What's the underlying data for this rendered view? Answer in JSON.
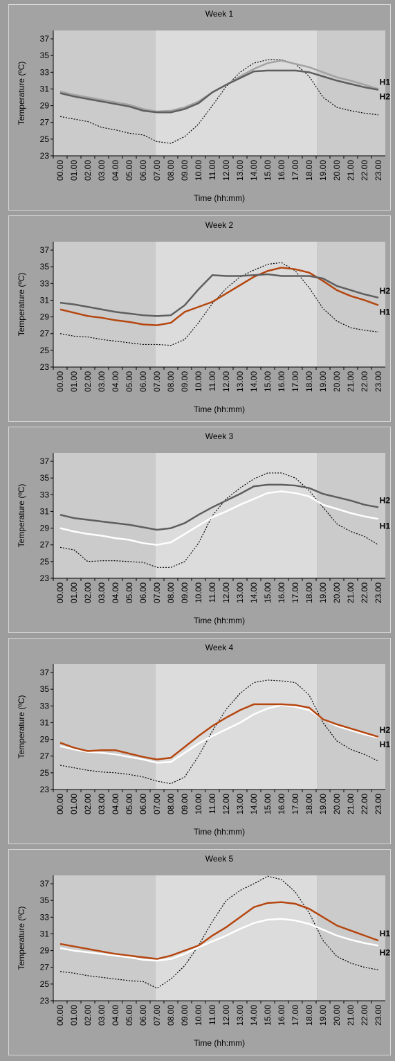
{
  "chart_data": [
    {
      "type": "line",
      "title": "Week 1",
      "ylabel": "Temperature (ºC)",
      "xlabel": "Time (hh:mm)",
      "categories": [
        "00.00",
        "01.00",
        "02.00",
        "03.00",
        "04.00",
        "05.00",
        "06.00",
        "07.00",
        "08.00",
        "09.00",
        "10.00",
        "11.00",
        "12.00",
        "13.00",
        "14.00",
        "15.00",
        "16.00",
        "17.00",
        "18.00",
        "19.00",
        "20.00",
        "21.00",
        "22.00",
        "23.00"
      ],
      "ylim": [
        23,
        38
      ],
      "yticks": [
        23,
        25,
        27,
        29,
        31,
        33,
        35,
        37
      ],
      "series": [
        {
          "color": "#000000",
          "dashed": true,
          "values": [
            27.7,
            27.4,
            27.1,
            26.4,
            26.1,
            25.7,
            25.5,
            24.7,
            24.5,
            25.3,
            26.8,
            29.0,
            31.3,
            33.0,
            34.1,
            34.5,
            34.5,
            34.0,
            32.5,
            30.0,
            28.8,
            28.4,
            28.1,
            27.9
          ]
        },
        {
          "name": "H1",
          "color": "#a2a2a2",
          "values": [
            30.7,
            30.3,
            30.0,
            29.7,
            29.4,
            29.1,
            28.6,
            28.3,
            28.4,
            28.8,
            29.5,
            30.6,
            31.5,
            32.5,
            33.4,
            34.1,
            34.4,
            34.0,
            33.6,
            33.0,
            32.4,
            32.0,
            31.5,
            31.0
          ]
        },
        {
          "name": "H2",
          "color": "#5e5e5e",
          "values": [
            30.5,
            30.1,
            29.8,
            29.5,
            29.2,
            28.9,
            28.4,
            28.2,
            28.2,
            28.6,
            29.3,
            30.6,
            31.5,
            32.3,
            33.1,
            33.2,
            33.2,
            33.2,
            33.0,
            32.5,
            32.0,
            31.6,
            31.2,
            30.9
          ]
        }
      ]
    },
    {
      "type": "line",
      "title": "Week 2",
      "ylabel": "Temperature (ºC)",
      "xlabel": "Time (hh:mm)",
      "categories": [
        "00.00",
        "01.00",
        "02.00",
        "03.00",
        "04.00",
        "05.00",
        "06.00",
        "07.00",
        "08.00",
        "09.00",
        "10.00",
        "11.00",
        "12.00",
        "13.00",
        "14.00",
        "15.00",
        "16.00",
        "17.00",
        "18.00",
        "19.00",
        "20.00",
        "21.00",
        "22.00",
        "23.00"
      ],
      "ylim": [
        23,
        38
      ],
      "yticks": [
        23,
        25,
        27,
        29,
        31,
        33,
        35,
        37
      ],
      "series": [
        {
          "color": "#000000",
          "dashed": true,
          "values": [
            27.0,
            26.7,
            26.6,
            26.3,
            26.1,
            25.9,
            25.7,
            25.7,
            25.6,
            26.3,
            28.3,
            30.6,
            32.4,
            33.8,
            34.6,
            35.3,
            35.5,
            34.5,
            32.5,
            30.0,
            28.5,
            27.7,
            27.4,
            27.2
          ]
        },
        {
          "name": "H1",
          "color": "#b5460f",
          "values": [
            29.9,
            29.5,
            29.1,
            28.9,
            28.6,
            28.4,
            28.1,
            28.0,
            28.3,
            29.6,
            30.2,
            30.8,
            31.8,
            32.8,
            33.8,
            34.5,
            34.9,
            34.7,
            34.3,
            33.3,
            32.2,
            31.5,
            31.0,
            30.4
          ]
        },
        {
          "name": "H2",
          "color": "#5e5e5e",
          "values": [
            30.7,
            30.5,
            30.2,
            29.9,
            29.6,
            29.4,
            29.2,
            29.1,
            29.2,
            30.4,
            32.3,
            34.0,
            33.9,
            33.9,
            34.0,
            34.1,
            33.9,
            33.9,
            33.9,
            33.6,
            32.7,
            32.2,
            31.7,
            31.3
          ]
        }
      ]
    },
    {
      "type": "line",
      "title": "Week 3",
      "ylabel": "Temperature (ºC)",
      "xlabel": "Time (hh:mm)",
      "categories": [
        "00.00",
        "01.00",
        "02.00",
        "03.00",
        "04.00",
        "05.00",
        "06.00",
        "07.00",
        "08.00",
        "09.00",
        "10.00",
        "11.00",
        "12.00",
        "13.00",
        "14.00",
        "15.00",
        "16.00",
        "17.00",
        "18.00",
        "19.00",
        "20.00",
        "21.00",
        "22.00",
        "23.00"
      ],
      "ylim": [
        23,
        38
      ],
      "yticks": [
        23,
        25,
        27,
        29,
        31,
        33,
        35,
        37
      ],
      "series": [
        {
          "color": "#000000",
          "dashed": true,
          "values": [
            26.7,
            26.4,
            25.0,
            25.1,
            25.1,
            25.0,
            24.9,
            24.3,
            24.3,
            25.0,
            27.2,
            30.5,
            32.5,
            33.8,
            34.9,
            35.6,
            35.6,
            35.0,
            33.5,
            31.5,
            29.5,
            28.6,
            28.0,
            27.0
          ]
        },
        {
          "name": "H1",
          "color": "#ffffff",
          "values": [
            29.0,
            28.6,
            28.3,
            28.1,
            27.8,
            27.6,
            27.2,
            27.0,
            27.3,
            28.3,
            29.3,
            30.3,
            31.0,
            31.8,
            32.5,
            33.2,
            33.4,
            33.2,
            32.8,
            31.8,
            31.3,
            30.8,
            30.4,
            30.1
          ]
        },
        {
          "name": "H2",
          "color": "#5e5e5e",
          "values": [
            30.6,
            30.2,
            30.0,
            29.8,
            29.6,
            29.4,
            29.1,
            28.8,
            29.0,
            29.6,
            30.6,
            31.5,
            32.3,
            33.1,
            34.0,
            34.2,
            34.2,
            34.1,
            33.8,
            33.1,
            32.7,
            32.3,
            31.8,
            31.5
          ]
        }
      ]
    },
    {
      "type": "line",
      "title": "Week 4",
      "ylabel": "Temperature (ºC)",
      "xlabel": "Time (hh:mm)",
      "categories": [
        "00.00",
        "01.00",
        "02.00",
        "03.00",
        "04.00",
        "05.00",
        "06.00",
        "07.00",
        "08.00",
        "09.00",
        "10.00",
        "11.00",
        "12.00",
        "13.00",
        "14.00",
        "15.00",
        "16.00",
        "17.00",
        "18.00",
        "19.00",
        "20.00",
        "21.00",
        "22.00",
        "23.00"
      ],
      "ylim": [
        23,
        38
      ],
      "yticks": [
        23,
        25,
        27,
        29,
        31,
        33,
        35,
        37
      ],
      "series": [
        {
          "color": "#000000",
          "dashed": true,
          "values": [
            25.9,
            25.6,
            25.3,
            25.1,
            25.0,
            24.8,
            24.5,
            24.0,
            23.7,
            24.5,
            27.0,
            30.0,
            32.6,
            34.5,
            35.8,
            36.1,
            36.0,
            35.8,
            34.3,
            31.0,
            28.8,
            27.8,
            27.2,
            26.4
          ]
        },
        {
          "name": "H1",
          "color": "#ffffff",
          "values": [
            28.2,
            27.8,
            27.5,
            27.4,
            27.2,
            26.9,
            26.6,
            26.2,
            26.3,
            27.4,
            28.5,
            29.4,
            30.2,
            31.0,
            32.0,
            32.7,
            33.1,
            32.9,
            32.5,
            31.4,
            30.6,
            30.1,
            29.6,
            29.2
          ]
        },
        {
          "name": "H2",
          "color": "#b5460f",
          "values": [
            28.6,
            28.0,
            27.6,
            27.7,
            27.7,
            27.3,
            26.9,
            26.6,
            26.8,
            28.1,
            29.4,
            30.6,
            31.6,
            32.5,
            33.2,
            33.2,
            33.2,
            33.1,
            32.8,
            31.4,
            30.8,
            30.3,
            29.8,
            29.3
          ]
        }
      ]
    },
    {
      "type": "line",
      "title": "Week 5",
      "ylabel": "Temperature (ºC)",
      "xlabel": "Time (hh:mm)",
      "categories": [
        "00.00",
        "01.00",
        "02.00",
        "03.00",
        "04.00",
        "05.00",
        "06.00",
        "07.00",
        "08.00",
        "09.00",
        "10.00",
        "11.00",
        "12.00",
        "13.00",
        "14.00",
        "15.00",
        "16.00",
        "17.00",
        "18.00",
        "19.00",
        "20.00",
        "21.00",
        "22.00",
        "23.00"
      ],
      "ylim": [
        23,
        38
      ],
      "yticks": [
        23,
        25,
        27,
        29,
        31,
        33,
        35,
        37
      ],
      "series": [
        {
          "color": "#000000",
          "dashed": true,
          "values": [
            26.5,
            26.3,
            26.0,
            25.8,
            25.6,
            25.4,
            25.3,
            24.5,
            25.6,
            27.2,
            29.6,
            32.5,
            35.0,
            36.2,
            37.0,
            37.9,
            37.5,
            36.0,
            33.5,
            30.2,
            28.3,
            27.5,
            27.0,
            26.7
          ]
        },
        {
          "name": "H1",
          "color": "#b5460f",
          "values": [
            29.8,
            29.5,
            29.2,
            28.9,
            28.6,
            28.4,
            28.2,
            28.0,
            28.4,
            29.0,
            29.6,
            30.8,
            31.8,
            33.0,
            34.2,
            34.7,
            34.8,
            34.6,
            34.0,
            33.0,
            32.0,
            31.4,
            30.8,
            30.2
          ]
        },
        {
          "name": "H2",
          "color": "#ffffff",
          "values": [
            29.3,
            29.0,
            28.8,
            28.6,
            28.4,
            28.2,
            27.9,
            27.8,
            28.0,
            28.6,
            29.4,
            30.1,
            30.8,
            31.6,
            32.3,
            32.7,
            32.8,
            32.6,
            32.2,
            31.5,
            30.8,
            30.3,
            29.9,
            29.6
          ]
        }
      ]
    }
  ]
}
